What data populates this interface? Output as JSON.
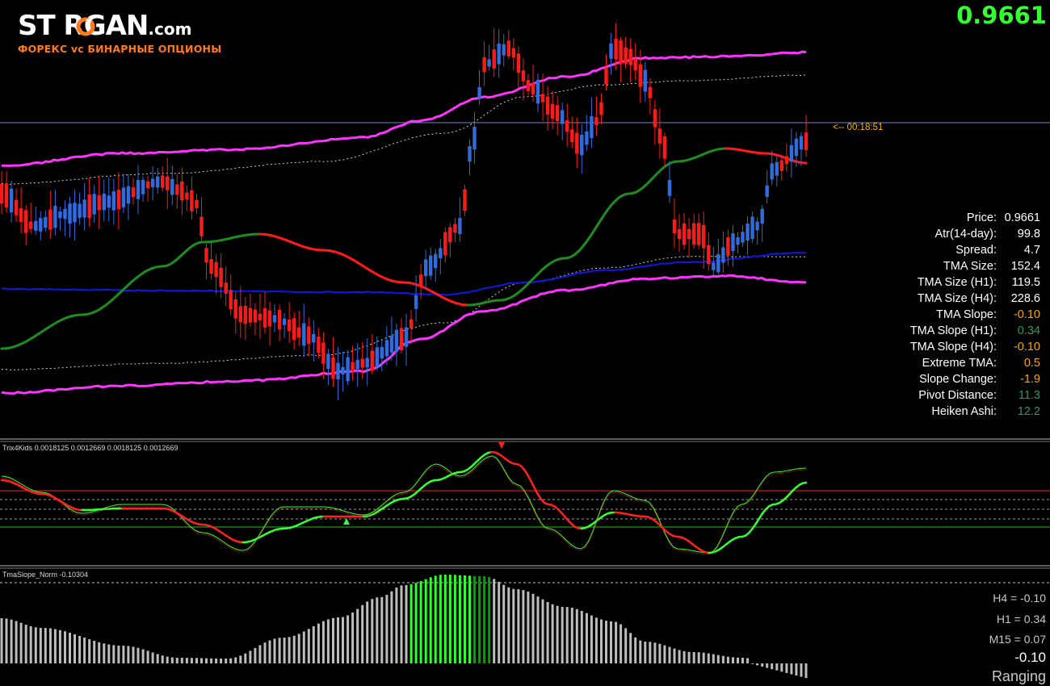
{
  "logo": {
    "brand_text": "ST RGAN",
    "domain": ".com",
    "subtitle": "ФОРЕКС vc БИНАРНЫЕ ОПЦИОНЫ"
  },
  "current_price": "0.9661",
  "countdown": "<-- 00:18:51",
  "colors": {
    "bull": "#2f6ce0",
    "bear": "#ff1a1a",
    "tma_band": "#ff33ff",
    "tma_mid": "#1018e8",
    "slope_up": "#1e8c1e",
    "slope_down": "#ff1a1a",
    "accent_green": "#33ff33",
    "orange": "#ffa500",
    "teal": "#2f9a60"
  },
  "info_panel": [
    {
      "label": "Price:",
      "value": "0.9661",
      "color": "#ffffff"
    },
    {
      "label": "Atr(14-day):",
      "value": "99.8",
      "color": "#ffffff"
    },
    {
      "label": "Spread:",
      "value": "4.7",
      "color": "#ffffff"
    },
    {
      "label": "TMA Size:",
      "value": "152.4",
      "color": "#ffffff"
    },
    {
      "label": "TMA Size (H1):",
      "value": "119.5",
      "color": "#ffffff"
    },
    {
      "label": "TMA Size (H4):",
      "value": "228.6",
      "color": "#ffffff"
    },
    {
      "label": "TMA Slope:",
      "value": "-0.10",
      "color": "#ffa500"
    },
    {
      "label": "TMA Slope (H1):",
      "value": "0.34",
      "color": "#2f9a60"
    },
    {
      "label": "TMA Slope (H4):",
      "value": "-0.10",
      "color": "#ffa500"
    },
    {
      "label": "Extreme TMA:",
      "value": "0.5",
      "color": "#ffa500"
    },
    {
      "label": "Slope Change:",
      "value": "-1.9",
      "color": "#ffa500"
    },
    {
      "label": "Pivot Distance:",
      "value": "11.3",
      "color": "#2f9a60"
    },
    {
      "label": "Heiken Ashi:",
      "value": "12.2",
      "color": "#2f9a60"
    }
  ],
  "indicators": {
    "trix_label": "Trix4Kids 0.0018125 0.0012669 0.0018125 0.0012669",
    "tma_slope_label": "TmaSlope_Norm -0.10304"
  },
  "timeframes": {
    "h4": "H4 = -0.10",
    "h1": "H1 = 0.34",
    "m15": "M15 = 0.07",
    "current": "-0.10",
    "state": "Ranging"
  }
}
